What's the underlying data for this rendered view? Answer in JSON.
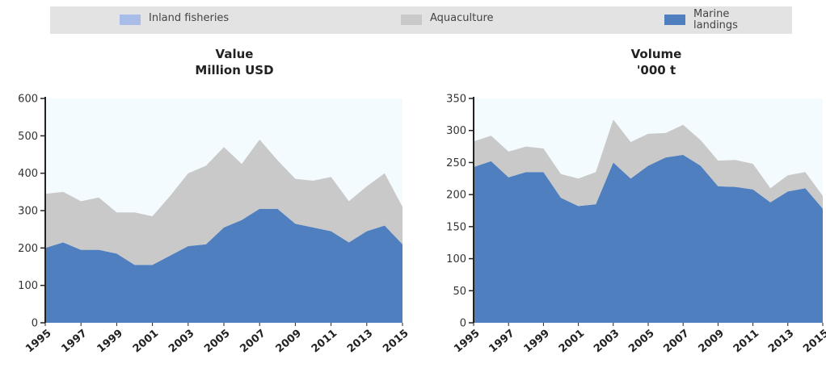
{
  "legend": [
    {
      "label": "Inland fisheries",
      "color": "#a9bde8"
    },
    {
      "label": "Aquaculture",
      "color": "#c9c9c9"
    },
    {
      "label": "Marine landings",
      "color": "#4f7fbf"
    }
  ],
  "chart_data": [
    {
      "type": "area",
      "stacked": true,
      "title": "Value",
      "subtitle": "Million USD",
      "x": [
        1995,
        1996,
        1997,
        1998,
        1999,
        2000,
        2001,
        2002,
        2003,
        2004,
        2005,
        2006,
        2007,
        2008,
        2009,
        2010,
        2011,
        2012,
        2013,
        2014,
        2015
      ],
      "xticks": [
        "1995",
        "1997",
        "1999",
        "2001",
        "2003",
        "2005",
        "2007",
        "2009",
        "2011",
        "2013",
        "2015"
      ],
      "ylim": [
        0,
        600
      ],
      "yticks": [
        "0",
        "100",
        "200",
        "300",
        "400",
        "500",
        "600"
      ],
      "series": [
        {
          "name": "Marine landings",
          "values": [
            200,
            215,
            195,
            195,
            185,
            155,
            155,
            180,
            205,
            210,
            255,
            275,
            305,
            305,
            265,
            255,
            245,
            215,
            245,
            260,
            210
          ]
        },
        {
          "name": "Aquaculture",
          "values": [
            145,
            135,
            130,
            140,
            110,
            140,
            130,
            160,
            195,
            210,
            215,
            150,
            185,
            130,
            120,
            125,
            145,
            110,
            120,
            140,
            100
          ]
        },
        {
          "name": "Inland fisheries",
          "values": [
            0,
            0,
            0,
            0,
            0,
            0,
            0,
            0,
            0,
            0,
            0,
            0,
            0,
            0,
            0,
            0,
            0,
            0,
            0,
            0,
            0
          ]
        }
      ]
    },
    {
      "type": "area",
      "stacked": true,
      "title": "Volume",
      "subtitle": "'000 t",
      "x": [
        1995,
        1996,
        1997,
        1998,
        1999,
        2000,
        2001,
        2002,
        2003,
        2004,
        2005,
        2006,
        2007,
        2008,
        2009,
        2010,
        2011,
        2012,
        2013,
        2014,
        2015
      ],
      "xticks": [
        "1995",
        "1997",
        "1999",
        "2001",
        "2003",
        "2005",
        "2007",
        "2009",
        "2011",
        "2013",
        "2015"
      ],
      "ylim": [
        0,
        350
      ],
      "yticks": [
        "0",
        "50",
        "100",
        "150",
        "200",
        "250",
        "300",
        "350"
      ],
      "series": [
        {
          "name": "Marine landings",
          "values": [
            243,
            252,
            227,
            235,
            235,
            195,
            182,
            185,
            250,
            225,
            245,
            258,
            262,
            245,
            213,
            212,
            208,
            188,
            205,
            210,
            178
          ]
        },
        {
          "name": "Aquaculture",
          "values": [
            40,
            40,
            40,
            40,
            37,
            37,
            43,
            50,
            67,
            57,
            50,
            38,
            47,
            40,
            40,
            42,
            40,
            22,
            25,
            25,
            20
          ]
        },
        {
          "name": "Inland fisheries",
          "values": [
            0,
            0,
            0,
            0,
            0,
            0,
            0,
            0,
            0,
            0,
            0,
            0,
            0,
            0,
            0,
            0,
            0,
            0,
            0,
            0,
            0
          ]
        }
      ]
    }
  ]
}
